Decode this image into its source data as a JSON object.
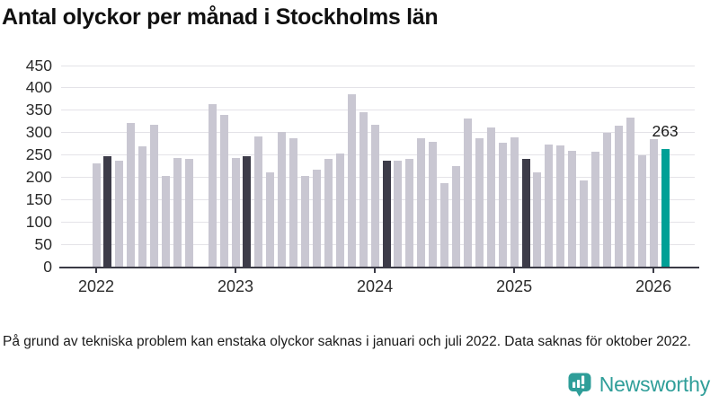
{
  "title": "Antal olyckor per månad i Stockholms län",
  "footnote": "På grund av tekniska problem kan enstaka olyckor saknas i januari och juli 2022. Data saknas för oktober 2022.",
  "logo": {
    "name": "Newsworthy",
    "brand_color": "#2f9e99"
  },
  "chart_data": {
    "type": "bar",
    "title": "Antal olyckor per månad i Stockholms län",
    "months": [
      "2022-01",
      "2022-02",
      "2022-03",
      "2022-04",
      "2022-05",
      "2022-06",
      "2022-07",
      "2022-08",
      "2022-09",
      "2022-10",
      "2022-11",
      "2022-12",
      "2023-01",
      "2023-02",
      "2023-03",
      "2023-04",
      "2023-05",
      "2023-06",
      "2023-07",
      "2023-08",
      "2023-09",
      "2023-10",
      "2023-11",
      "2023-12",
      "2024-01",
      "2024-02",
      "2024-03",
      "2024-04",
      "2024-05",
      "2024-06",
      "2024-07",
      "2024-08",
      "2024-09",
      "2024-10",
      "2024-11",
      "2024-12",
      "2025-01",
      "2025-02",
      "2025-03",
      "2025-04",
      "2025-05",
      "2025-06",
      "2025-07",
      "2025-08",
      "2025-09",
      "2025-10",
      "2025-11",
      "2025-12",
      "2026-01",
      "2026-02"
    ],
    "values": [
      231,
      248,
      238,
      322,
      270,
      317,
      202,
      244,
      242,
      null,
      363,
      339,
      244,
      248,
      291,
      210,
      302,
      288,
      203,
      216,
      241,
      254,
      385,
      346,
      317,
      237,
      238,
      241,
      288,
      279,
      187,
      226,
      332,
      287,
      312,
      277,
      290,
      241,
      211,
      273,
      271,
      259,
      192,
      258,
      300,
      315,
      333,
      249,
      285,
      263
    ],
    "missing_months": [
      "2022-10"
    ],
    "highlighted_months": [
      "2022-02",
      "2023-02",
      "2024-02",
      "2025-02"
    ],
    "latest_month": "2026-02",
    "latest_value_label": "263",
    "ylim": [
      0,
      450
    ],
    "yticks": [
      0,
      50,
      100,
      150,
      200,
      250,
      300,
      350,
      400,
      450
    ],
    "year_ticks": [
      "2022",
      "2023",
      "2024",
      "2025",
      "2026"
    ],
    "grid": true,
    "legend": "none",
    "colors": {
      "bar": "#c9c7d2",
      "highlight": "#3d3c49",
      "latest": "#00a096",
      "grid": "#e4e3e8",
      "axis": "#3a3a45"
    }
  }
}
